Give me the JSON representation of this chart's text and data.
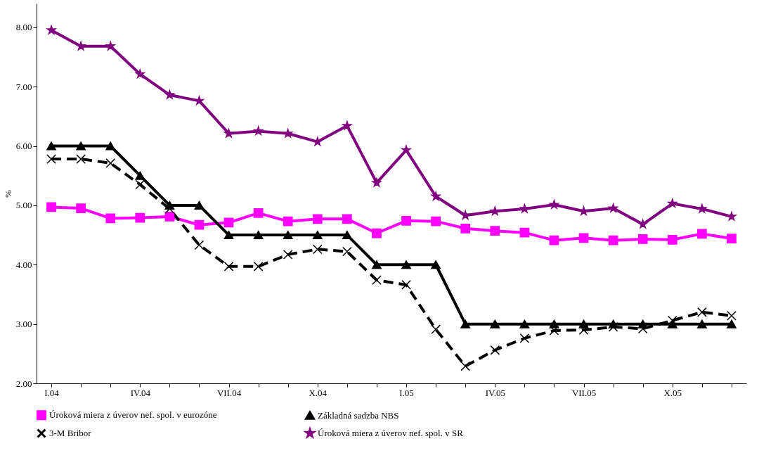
{
  "chart_data": {
    "type": "line",
    "ylabel": "%",
    "categories": [
      "I.04",
      null,
      null,
      "IV.04",
      null,
      null,
      "VII.04",
      null,
      null,
      "X.04",
      null,
      null,
      "I.05",
      null,
      null,
      "IV.05",
      null,
      null,
      "VII.05",
      null,
      null,
      "X.05",
      null,
      null
    ],
    "ylim": [
      2,
      8.4
    ],
    "yticks": [
      {
        "value": 2,
        "label": "2.00"
      },
      {
        "value": 3,
        "label": "3.00"
      },
      {
        "value": 4,
        "label": "4.00"
      },
      {
        "value": 5,
        "label": "5.00"
      },
      {
        "value": 6,
        "label": "6.00"
      },
      {
        "value": 7,
        "label": "7.00"
      },
      {
        "value": 8,
        "label": "8.00"
      }
    ],
    "grid": false,
    "legend": "bottom",
    "series": [
      {
        "name": "Úroková miera z úverov nef. spol. v eurozóne",
        "color": "#ff00ff",
        "marker": "square",
        "line_style": "solid",
        "values": [
          4.97,
          4.95,
          4.78,
          4.79,
          4.81,
          4.67,
          4.71,
          4.87,
          4.73,
          4.77,
          4.77,
          4.53,
          4.74,
          4.73,
          4.61,
          4.57,
          4.54,
          4.41,
          4.45,
          4.41,
          4.43,
          4.42,
          4.52,
          4.44
        ]
      },
      {
        "name": "Základná sadzba NBS",
        "color": "#000000",
        "marker": "triangle",
        "line_style": "solid",
        "values": [
          6,
          6,
          6,
          5.5,
          5,
          5,
          4.5,
          4.5,
          4.5,
          4.5,
          4.5,
          4,
          4,
          4,
          3,
          3,
          3,
          3,
          3,
          3,
          3,
          3,
          3,
          3
        ]
      },
      {
        "name": "3-M Bribor",
        "color": "#000000",
        "marker": "cross",
        "line_style": "dashed",
        "values": [
          5.78,
          5.78,
          5.71,
          5.35,
          4.94,
          4.33,
          3.97,
          3.97,
          4.17,
          4.26,
          4.22,
          3.74,
          3.66,
          2.91,
          2.29,
          2.56,
          2.76,
          2.89,
          2.9,
          2.95,
          2.92,
          3.06,
          3.2,
          3.14
        ]
      },
      {
        "name": "Úroková miera z úverov nef. spol. v SR",
        "color": "#800080",
        "marker": "star",
        "line_style": "solid",
        "values": [
          7.95,
          7.68,
          7.68,
          7.21,
          6.86,
          6.76,
          6.21,
          6.25,
          6.21,
          6.07,
          6.34,
          5.38,
          5.93,
          5.15,
          4.83,
          4.9,
          4.94,
          5.01,
          4.9,
          4.95,
          4.68,
          5.03,
          4.94,
          4.81
        ]
      }
    ]
  }
}
